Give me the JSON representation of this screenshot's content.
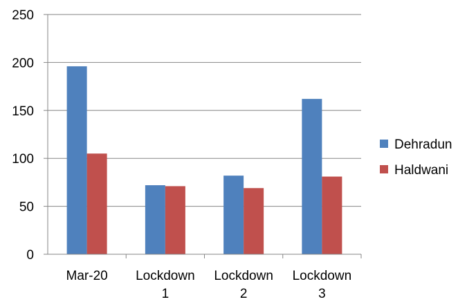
{
  "chart_data": {
    "type": "bar",
    "title": "",
    "xlabel": "",
    "ylabel": "",
    "categories": [
      [
        "Mar-20"
      ],
      [
        "Lockdown",
        "1"
      ],
      [
        "Lockdown",
        "2"
      ],
      [
        "Lockdown",
        "3"
      ]
    ],
    "series": [
      {
        "name": "Dehradun",
        "color": "#4f81bd",
        "values": [
          196,
          72,
          82,
          162
        ]
      },
      {
        "name": "Haldwani",
        "color": "#c0504d",
        "values": [
          105,
          71,
          69,
          81
        ]
      }
    ],
    "ylim": [
      0,
      250
    ],
    "yticks": [
      0,
      50,
      100,
      150,
      200,
      250
    ],
    "grid": true,
    "legend": "right"
  }
}
